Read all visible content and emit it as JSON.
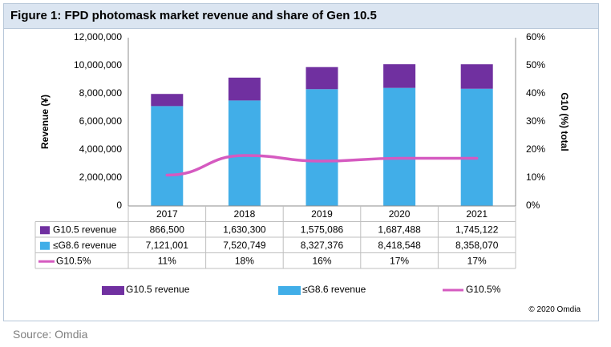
{
  "title": "Figure 1: FPD photomask market revenue and share of Gen 10.5",
  "copyright": "© 2020 Omdia",
  "source": "Source: Omdia",
  "colors": {
    "g105": "#7030a0",
    "g86": "#41aee8",
    "share": "#d55ac0",
    "title_bg": "#dbe5f1",
    "border": "#b7c7d9",
    "grid": "#bfbfbf"
  },
  "chart_data": {
    "type": "bar",
    "stacked": true,
    "title": "Figure 1: FPD photomask market revenue and share of Gen 10.5",
    "categories": [
      "2017",
      "2018",
      "2019",
      "2020",
      "2021"
    ],
    "ylabel": "Revenue (¥)",
    "y2label": "G10 (%) total",
    "ylim": [
      0,
      12000000
    ],
    "y2lim": [
      0,
      60
    ],
    "yticks": [
      "0",
      "2,000,000",
      "4,000,000",
      "6,000,000",
      "8,000,000",
      "10,000,000",
      "12,000,000"
    ],
    "y2ticks": [
      "0%",
      "10%",
      "20%",
      "30%",
      "40%",
      "50%",
      "60%"
    ],
    "series": [
      {
        "name": "≤G8.6 revenue",
        "type": "bar",
        "axis": "left",
        "values": [
          7121001,
          7520749,
          8327376,
          8418548,
          8358070
        ],
        "labels": [
          "7,121,001",
          "7,520,749",
          "8,327,376",
          "8,418,548",
          "8,358,070"
        ]
      },
      {
        "name": "G10.5 revenue",
        "type": "bar",
        "axis": "left",
        "values": [
          866500,
          1630300,
          1575086,
          1687488,
          1745122
        ],
        "labels": [
          "866,500",
          "1,630,300",
          "1,575,086",
          "1,687,488",
          "1,745,122"
        ]
      },
      {
        "name": "G10.5%",
        "type": "line",
        "axis": "right",
        "values": [
          11,
          18,
          16,
          17,
          17
        ],
        "labels": [
          "11%",
          "18%",
          "16%",
          "17%",
          "17%"
        ]
      }
    ],
    "table_rows": [
      {
        "label": "G10.5 revenue",
        "series": 1,
        "key": "rect-purple"
      },
      {
        "label": "≤G8.6 revenue",
        "series": 0,
        "key": "rect-blue"
      },
      {
        "label": "G10.5%",
        "series": 2,
        "key": "line-pink"
      }
    ],
    "legend": [
      {
        "label": "G10.5 revenue",
        "key": "rect-purple"
      },
      {
        "label": "≤G8.6 revenue",
        "key": "rect-blue"
      },
      {
        "label": "G10.5%",
        "key": "line-pink"
      }
    ],
    "grid": false
  }
}
